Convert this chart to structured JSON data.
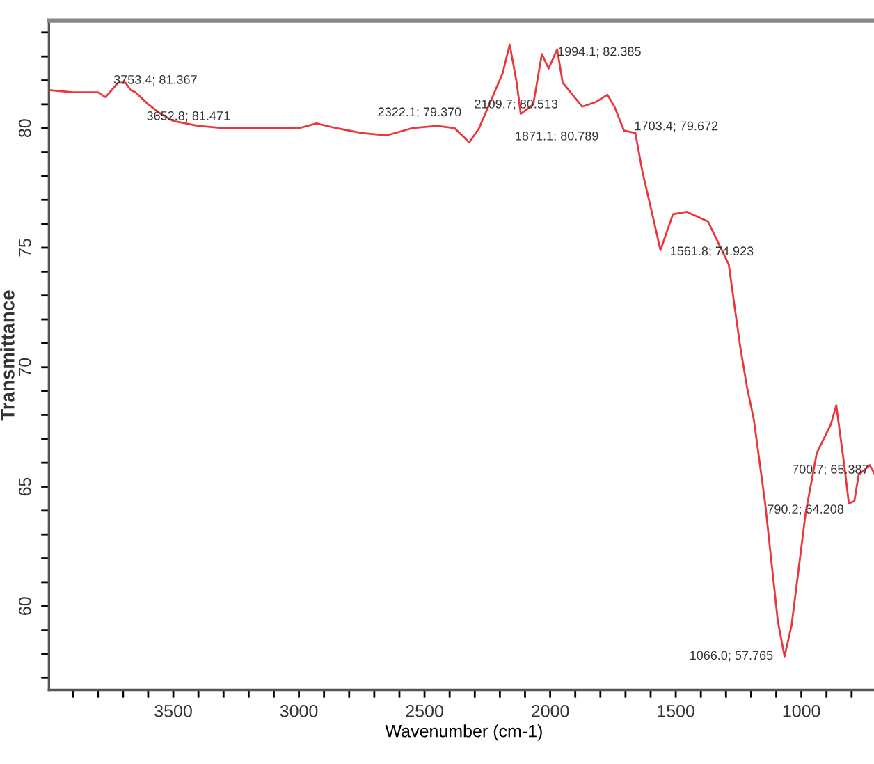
{
  "chart_data": {
    "type": "line",
    "xlabel": "Wavenumber (cm-1)",
    "ylabel": "Transmittance",
    "xlim": [
      3995,
      690
    ],
    "ylim": [
      56.5,
      84.5
    ],
    "xticks": [
      {
        "value": 3900,
        "label": null
      },
      {
        "value": 3800,
        "label": null
      },
      {
        "value": 3700,
        "label": null
      },
      {
        "value": 3600,
        "label": null
      },
      3500,
      {
        "value": 3400,
        "label": null
      },
      {
        "value": 3300,
        "label": null
      },
      {
        "value": 3200,
        "label": null
      },
      {
        "value": 3100,
        "label": null
      },
      3000,
      {
        "value": 2900,
        "label": null
      },
      {
        "value": 2800,
        "label": null
      },
      {
        "value": 2700,
        "label": null
      },
      {
        "value": 2600,
        "label": null
      },
      2500,
      {
        "value": 2400,
        "label": null
      },
      {
        "value": 2300,
        "label": null
      },
      {
        "value": 2200,
        "label": null
      },
      {
        "value": 2100,
        "label": null
      },
      2000,
      {
        "value": 1900,
        "label": null
      },
      {
        "value": 1800,
        "label": null
      },
      {
        "value": 1700,
        "label": null
      },
      {
        "value": 1600,
        "label": null
      },
      1500,
      {
        "value": 1400,
        "label": null
      },
      {
        "value": 1300,
        "label": null
      },
      {
        "value": 1200,
        "label": null
      },
      {
        "value": 1100,
        "label": null
      },
      1000,
      {
        "value": 900,
        "label": null
      },
      {
        "value": 800,
        "label": null
      }
    ],
    "yticks": [
      {
        "value": 57,
        "label": null
      },
      {
        "value": 58,
        "label": null
      },
      {
        "value": 59,
        "label": null
      },
      60,
      {
        "value": 61,
        "label": null
      },
      {
        "value": 62,
        "label": null
      },
      {
        "value": 63,
        "label": null
      },
      {
        "value": 64,
        "label": null
      },
      65,
      {
        "value": 66,
        "label": null
      },
      {
        "value": 67,
        "label": null
      },
      {
        "value": 68,
        "label": null
      },
      {
        "value": 69,
        "label": null
      },
      70,
      {
        "value": 71,
        "label": null
      },
      {
        "value": 72,
        "label": null
      },
      {
        "value": 73,
        "label": null
      },
      {
        "value": 74,
        "label": null
      },
      75,
      {
        "value": 76,
        "label": null
      },
      {
        "value": 77,
        "label": null
      },
      {
        "value": 78,
        "label": null
      },
      {
        "value": 79,
        "label": null
      },
      80,
      {
        "value": 81,
        "label": null
      },
      {
        "value": 82,
        "label": null
      },
      {
        "value": 83,
        "label": null
      },
      {
        "value": 84,
        "label": null
      }
    ],
    "grid": false,
    "legend": false,
    "marker": "none",
    "line_style": "solid",
    "series": [
      {
        "color": "#e8383d",
        "x": [
          3995,
          3900,
          3800,
          3770,
          3753,
          3720,
          3690,
          3670,
          3650,
          3600,
          3550,
          3500,
          3400,
          3300,
          3200,
          3100,
          3000,
          2930,
          2850,
          2750,
          2650,
          2550,
          2450,
          2380,
          2322,
          2283,
          2189,
          2161,
          2133,
          2117,
          2067,
          2033,
          2006,
          1972,
          1950,
          1872,
          1817,
          1772,
          1744,
          1706,
          1661,
          1633,
          1589,
          1561,
          1511,
          1456,
          1372,
          1289,
          1244,
          1217,
          1189,
          1144,
          1094,
          1067,
          1039,
          983,
          939,
          883,
          861,
          828,
          811,
          789,
          772,
          728,
          700.7
        ],
        "values": [
          81.6,
          81.5,
          81.5,
          81.3,
          81.5,
          81.9,
          81.9,
          81.6,
          81.5,
          81.0,
          80.6,
          80.3,
          80.1,
          80.0,
          80.0,
          80.0,
          80.0,
          80.2,
          80.0,
          79.8,
          79.7,
          80.0,
          80.1,
          80.0,
          79.4,
          80.0,
          82.3,
          83.5,
          81.9,
          80.6,
          81.0,
          83.1,
          82.5,
          83.3,
          81.9,
          80.9,
          81.1,
          81.4,
          80.9,
          79.9,
          79.8,
          78.2,
          76.2,
          74.9,
          76.4,
          76.5,
          76.1,
          74.3,
          70.9,
          69.2,
          67.8,
          64.3,
          59.4,
          57.9,
          59.2,
          63.9,
          66.4,
          67.6,
          68.4,
          65.8,
          64.3,
          64.4,
          65.5,
          65.9,
          65.4
        ]
      }
    ],
    "annotations": [
      {
        "text": "3753.4; 81.367",
        "x": 3753.4,
        "y": 81.367
      },
      {
        "text": "3652.8; 81.471",
        "x": 3652.8,
        "y": 81.471
      },
      {
        "text": "2322.1; 79.370",
        "x": 2322.1,
        "y": 79.37
      },
      {
        "text": "1994.1; 82.385",
        "x": 1994.1,
        "y": 82.385
      },
      {
        "text": "2109.7; 80.513",
        "x": 2109.7,
        "y": 80.513
      },
      {
        "text": "1871.1; 80.789",
        "x": 1871.1,
        "y": 80.789
      },
      {
        "text": "1703.4; 79.672",
        "x": 1703.4,
        "y": 79.672
      },
      {
        "text": "1561.8; 74.923",
        "x": 1561.8,
        "y": 74.923
      },
      {
        "text": "700.7; 65.387",
        "x": 700.7,
        "y": 65.387
      },
      {
        "text": "790.2; 64.208",
        "x": 790.2,
        "y": 64.208
      },
      {
        "text": "1066.0; 57.765",
        "x": 1066.0,
        "y": 57.765
      }
    ]
  }
}
